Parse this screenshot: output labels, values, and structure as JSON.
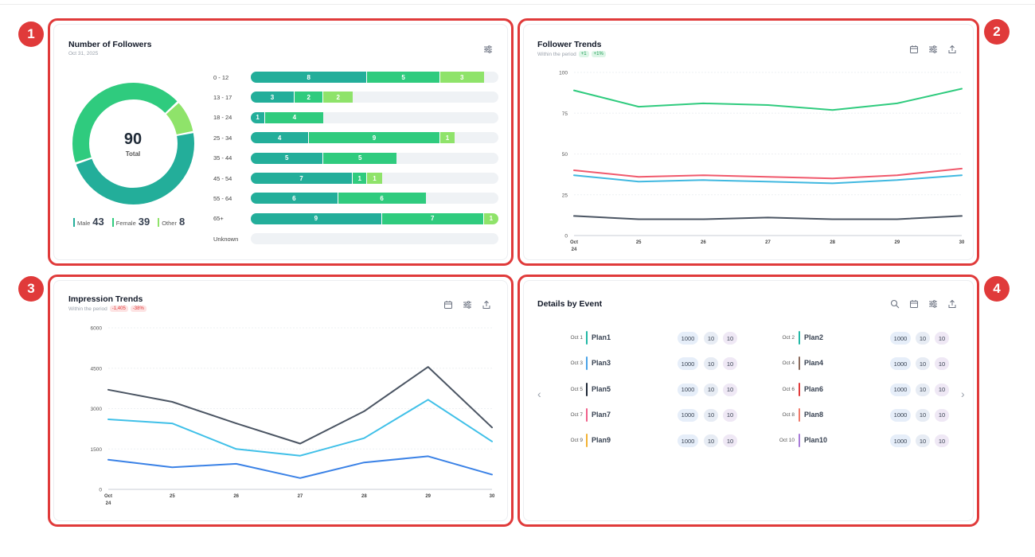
{
  "colors": {
    "frame": "#e03a3a",
    "male": "#23ae9a",
    "female": "#2fcb7e",
    "other": "#8fe36a",
    "track": "#eff2f5"
  },
  "markers": [
    "1",
    "2",
    "3",
    "4"
  ],
  "followers": {
    "title": "Number of Followers",
    "date": "Oct 31, 2025",
    "total": "90",
    "total_label": "Total",
    "legend": [
      {
        "label": "Male",
        "value": "43",
        "color": "#23ae9a"
      },
      {
        "label": "Female",
        "value": "39",
        "color": "#2fcb7e"
      },
      {
        "label": "Other",
        "value": "8",
        "color": "#8fe36a"
      }
    ],
    "icon": "sliders-icon",
    "age_groups": [
      {
        "label": "0 - 12",
        "male": 8,
        "female": 5,
        "other": 3
      },
      {
        "label": "13 - 17",
        "male": 3,
        "female": 2,
        "other": 2
      },
      {
        "label": "18 - 24",
        "male": 1,
        "female": 4,
        "other": 0
      },
      {
        "label": "25 - 34",
        "male": 4,
        "female": 9,
        "other": 1
      },
      {
        "label": "35 - 44",
        "male": 5,
        "female": 5,
        "other": 0
      },
      {
        "label": "45 - 54",
        "male": 7,
        "female": 1,
        "other": 1
      },
      {
        "label": "55 - 64",
        "male": 6,
        "female": 6,
        "other": 0
      },
      {
        "label": "65+",
        "male": 9,
        "female": 7,
        "other": 1
      },
      {
        "label": "Unknown",
        "male": 0,
        "female": 0,
        "other": 0
      }
    ],
    "age_scale_max": 17
  },
  "follower_trends": {
    "title": "Follower Trends",
    "subtitle": "Within the period",
    "pills": [
      "+1",
      "+1%"
    ],
    "icons": [
      "calendar-icon",
      "sliders-icon",
      "share-icon"
    ],
    "chart_data": {
      "type": "line",
      "x": [
        "Oct 24",
        "25",
        "26",
        "27",
        "28",
        "29",
        "30"
      ],
      "ylim": [
        0,
        100
      ],
      "yticks": [
        "100",
        "75",
        "50",
        "25",
        "0"
      ],
      "grid": true,
      "series": [
        {
          "color": "#2fcb7e",
          "values": [
            89,
            79,
            81,
            80,
            77,
            81,
            90
          ]
        },
        {
          "color": "#f0596c",
          "values": [
            40,
            36,
            37,
            36,
            35,
            37,
            41
          ]
        },
        {
          "color": "#40b8e0",
          "values": [
            37,
            33,
            34,
            33,
            32,
            34,
            37
          ]
        },
        {
          "color": "#4b5563",
          "values": [
            12,
            10,
            10,
            11,
            10,
            10,
            12
          ]
        }
      ]
    }
  },
  "impression_trends": {
    "title": "Impression Trends",
    "subtitle": "Within the period",
    "pills": [
      "-1,405",
      "-38%"
    ],
    "icons": [
      "calendar-icon",
      "sliders-icon",
      "share-icon"
    ],
    "chart_data": {
      "type": "line",
      "x": [
        "Oct 24",
        "25",
        "26",
        "27",
        "28",
        "29",
        "30"
      ],
      "ylim": [
        0,
        6000
      ],
      "yticks": [
        "6000",
        "4500",
        "3000",
        "1500",
        "0"
      ],
      "grid": true,
      "series": [
        {
          "color": "#4b5563",
          "values": [
            3700,
            3250,
            2450,
            1700,
            2900,
            4550,
            2300
          ]
        },
        {
          "color": "#40c0e8",
          "values": [
            2600,
            2450,
            1500,
            1250,
            1900,
            3330,
            1780
          ]
        },
        {
          "color": "#3b82e6",
          "values": [
            1100,
            820,
            950,
            420,
            1000,
            1230,
            550
          ]
        }
      ]
    }
  },
  "details": {
    "title": "Details by Event",
    "icons": [
      "search-icon",
      "calendar-icon",
      "sliders-icon",
      "share-icon"
    ],
    "nav": {
      "prev": "‹",
      "next": "›"
    },
    "events": [
      {
        "date": "Oct 1",
        "name": "Plan1",
        "color": "#22b8a6",
        "a": "1000",
        "b": "10",
        "c": "10"
      },
      {
        "date": "Oct 2",
        "name": "Plan2",
        "color": "#22b8a6",
        "a": "1000",
        "b": "10",
        "c": "10"
      },
      {
        "date": "Oct 3",
        "name": "Plan3",
        "color": "#4aa3e8",
        "a": "1000",
        "b": "10",
        "c": "10"
      },
      {
        "date": "Oct 4",
        "name": "Plan4",
        "color": "#8a6a5c",
        "a": "1000",
        "b": "10",
        "c": "10"
      },
      {
        "date": "Oct 5",
        "name": "Plan5",
        "color": "#1f2937",
        "a": "1000",
        "b": "10",
        "c": "10"
      },
      {
        "date": "Oct 6",
        "name": "Plan6",
        "color": "#e03a3a",
        "a": "1000",
        "b": "10",
        "c": "10"
      },
      {
        "date": "Oct 7",
        "name": "Plan7",
        "color": "#f0608a",
        "a": "1000",
        "b": "10",
        "c": "10"
      },
      {
        "date": "Oct 8",
        "name": "Plan8",
        "color": "#f07a6a",
        "a": "1000",
        "b": "10",
        "c": "10"
      },
      {
        "date": "Oct 9",
        "name": "Plan9",
        "color": "#f2b233",
        "a": "1000",
        "b": "10",
        "c": "10"
      },
      {
        "date": "Oct 10",
        "name": "Plan10",
        "color": "#a77ad8",
        "a": "1000",
        "b": "10",
        "c": "10"
      }
    ]
  }
}
